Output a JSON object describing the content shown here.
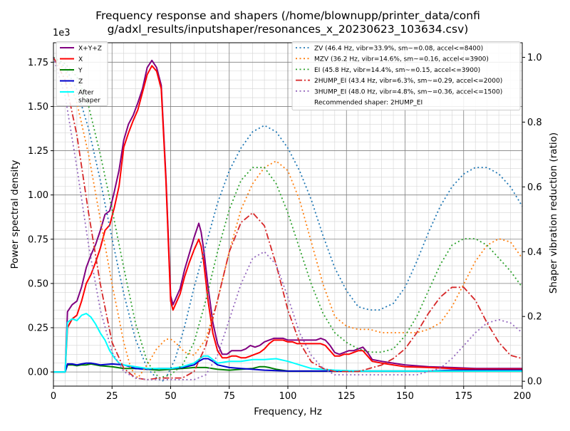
{
  "chart_data": {
    "type": "line",
    "title": [
      "Frequency response and shapers (/home/blownupp/printer_data/confi",
      "g/adxl_results/inputshaper/resonances_x_20230623_103634.csv)"
    ],
    "xlabel": "Frequency, Hz",
    "ylabel": "Power spectral density",
    "y2label": "Shaper vibration reduction (ratio)",
    "y_offset_text": "1e3",
    "xlim": [
      0,
      200
    ],
    "ylim": [
      -0.08,
      1.86
    ],
    "y2lim": [
      -0.015,
      1.045
    ],
    "x_ticks": [
      "0",
      "25",
      "50",
      "75",
      "100",
      "125",
      "150",
      "175",
      "200"
    ],
    "y_ticks": [
      "0.00",
      "0.25",
      "0.50",
      "0.75",
      "1.00",
      "1.25",
      "1.50",
      "1.75"
    ],
    "y2_ticks": [
      "0.0",
      "0.2",
      "0.4",
      "0.6",
      "0.8",
      "1.0"
    ],
    "grid": true,
    "legend_left_position": "top-left",
    "legend_right_position": "top-right",
    "psd_series": [
      {
        "name": "X+Y+Z",
        "color": "#800080",
        "x": [
          0,
          5,
          6,
          8,
          10,
          12,
          14,
          16,
          18,
          20,
          22,
          24,
          26,
          28,
          30,
          32,
          34,
          36,
          38,
          40,
          42,
          44,
          46,
          48,
          50,
          51,
          52,
          54,
          56,
          58,
          60,
          62,
          63,
          64,
          66,
          68,
          70,
          72,
          74,
          76,
          78,
          80,
          82,
          84,
          86,
          88,
          90,
          92,
          94,
          96,
          98,
          100,
          102,
          104,
          106,
          108,
          110,
          112,
          114,
          116,
          118,
          120,
          122,
          124,
          126,
          128,
          130,
          132,
          134,
          136,
          140,
          145,
          150,
          160,
          170,
          180,
          190,
          200
        ],
        "y": [
          0.0,
          0.0,
          0.34,
          0.38,
          0.4,
          0.48,
          0.59,
          0.66,
          0.72,
          0.8,
          0.89,
          0.91,
          1.02,
          1.14,
          1.31,
          1.4,
          1.45,
          1.52,
          1.6,
          1.72,
          1.76,
          1.72,
          1.62,
          1.1,
          0.43,
          0.38,
          0.41,
          0.47,
          0.58,
          0.67,
          0.76,
          0.84,
          0.79,
          0.7,
          0.48,
          0.28,
          0.16,
          0.1,
          0.1,
          0.12,
          0.12,
          0.12,
          0.13,
          0.15,
          0.14,
          0.15,
          0.17,
          0.18,
          0.19,
          0.19,
          0.19,
          0.18,
          0.18,
          0.18,
          0.18,
          0.18,
          0.18,
          0.18,
          0.19,
          0.18,
          0.15,
          0.11,
          0.1,
          0.11,
          0.12,
          0.12,
          0.13,
          0.14,
          0.11,
          0.07,
          0.06,
          0.05,
          0.04,
          0.03,
          0.025,
          0.02,
          0.02,
          0.02
        ]
      },
      {
        "name": "X",
        "color": "#ff0000",
        "x": [
          0,
          5,
          6,
          8,
          10,
          12,
          14,
          16,
          18,
          20,
          22,
          24,
          26,
          28,
          30,
          32,
          34,
          36,
          38,
          40,
          42,
          44,
          46,
          48,
          50,
          51,
          52,
          54,
          56,
          58,
          60,
          62,
          63,
          64,
          66,
          68,
          70,
          72,
          74,
          76,
          78,
          80,
          82,
          84,
          86,
          88,
          90,
          92,
          94,
          96,
          98,
          100,
          102,
          104,
          106,
          108,
          110,
          112,
          114,
          116,
          118,
          120,
          122,
          124,
          126,
          128,
          130,
          132,
          134,
          136,
          140,
          145,
          150,
          160,
          170,
          180,
          190,
          200
        ],
        "y": [
          0.0,
          0.0,
          0.25,
          0.3,
          0.32,
          0.4,
          0.5,
          0.55,
          0.62,
          0.7,
          0.8,
          0.83,
          0.93,
          1.05,
          1.27,
          1.35,
          1.42,
          1.48,
          1.58,
          1.68,
          1.73,
          1.7,
          1.6,
          1.08,
          0.4,
          0.35,
          0.38,
          0.44,
          0.54,
          0.62,
          0.69,
          0.75,
          0.71,
          0.63,
          0.4,
          0.22,
          0.12,
          0.08,
          0.08,
          0.09,
          0.09,
          0.08,
          0.08,
          0.09,
          0.1,
          0.11,
          0.13,
          0.16,
          0.18,
          0.18,
          0.18,
          0.17,
          0.17,
          0.16,
          0.16,
          0.16,
          0.16,
          0.16,
          0.16,
          0.15,
          0.12,
          0.09,
          0.09,
          0.1,
          0.1,
          0.11,
          0.12,
          0.12,
          0.09,
          0.06,
          0.05,
          0.04,
          0.03,
          0.025,
          0.02,
          0.015,
          0.015,
          0.015
        ]
      },
      {
        "name": "Y",
        "color": "#008000",
        "x": [
          0,
          5,
          6,
          8,
          10,
          12,
          14,
          16,
          18,
          20,
          25,
          30,
          35,
          40,
          45,
          50,
          55,
          60,
          65,
          70,
          75,
          80,
          85,
          88,
          90,
          92,
          95,
          100,
          110,
          120,
          130,
          140,
          150,
          160,
          170,
          180,
          190,
          200
        ],
        "y": [
          0.0,
          0.0,
          0.04,
          0.04,
          0.035,
          0.04,
          0.04,
          0.045,
          0.04,
          0.035,
          0.03,
          0.02,
          0.02,
          0.015,
          0.01,
          0.015,
          0.02,
          0.025,
          0.025,
          0.015,
          0.01,
          0.015,
          0.02,
          0.03,
          0.03,
          0.025,
          0.015,
          0.005,
          0.005,
          0.005,
          0.005,
          0.005,
          0.005,
          0.005,
          0.005,
          0.005,
          0.005,
          0.005
        ]
      },
      {
        "name": "Z",
        "color": "#0000cc",
        "x": [
          0,
          5,
          6,
          8,
          10,
          12,
          14,
          16,
          18,
          20,
          25,
          30,
          35,
          40,
          45,
          50,
          55,
          60,
          62,
          64,
          66,
          68,
          70,
          75,
          80,
          85,
          90,
          100,
          110,
          120,
          130,
          140,
          150,
          160,
          170,
          180,
          190,
          200
        ],
        "y": [
          0.0,
          0.0,
          0.045,
          0.045,
          0.04,
          0.045,
          0.05,
          0.05,
          0.045,
          0.04,
          0.045,
          0.04,
          0.02,
          0.015,
          0.02,
          0.02,
          0.025,
          0.04,
          0.06,
          0.075,
          0.075,
          0.06,
          0.04,
          0.025,
          0.02,
          0.015,
          0.01,
          0.005,
          0.005,
          0.005,
          0.005,
          0.005,
          0.005,
          0.005,
          0.01,
          0.01,
          0.01,
          0.01
        ]
      },
      {
        "name": "After\nshaper",
        "color": "#00ffff",
        "x": [
          0,
          5,
          6,
          8,
          10,
          12,
          14,
          16,
          18,
          20,
          22,
          24,
          26,
          28,
          30,
          35,
          40,
          45,
          50,
          55,
          60,
          62,
          64,
          66,
          68,
          70,
          75,
          80,
          85,
          90,
          95,
          100,
          105,
          110,
          120,
          130,
          140,
          150,
          160,
          170,
          180,
          190,
          200
        ],
        "y": [
          0.0,
          0.0,
          0.28,
          0.3,
          0.29,
          0.32,
          0.33,
          0.31,
          0.27,
          0.22,
          0.18,
          0.12,
          0.08,
          0.05,
          0.04,
          0.03,
          0.02,
          0.02,
          0.02,
          0.03,
          0.05,
          0.07,
          0.09,
          0.09,
          0.07,
          0.05,
          0.06,
          0.06,
          0.07,
          0.07,
          0.075,
          0.06,
          0.04,
          0.02,
          0.01,
          0.005,
          0.005,
          0.005,
          0.005,
          0.005,
          0.005,
          0.005,
          0.005
        ]
      }
    ],
    "shaper_series": [
      {
        "name": "ZV (46.4 Hz, vibr=33.9%, sm~=0.08, accel<=8400)",
        "color": "#1f77b4",
        "style": "dotted",
        "x": [
          0,
          5,
          10,
          15,
          20,
          25,
          30,
          35,
          40,
          44,
          46.4,
          48,
          52,
          56,
          60,
          65,
          70,
          75,
          80,
          85,
          90,
          95,
          100,
          105,
          110,
          115,
          120,
          125,
          130,
          135,
          139,
          145,
          150,
          155,
          160,
          165,
          170,
          175,
          180,
          185,
          190,
          195,
          200
        ],
        "y": [
          1.0,
          0.97,
          0.9,
          0.78,
          0.62,
          0.44,
          0.27,
          0.13,
          0.04,
          0.01,
          0.0,
          0.01,
          0.07,
          0.17,
          0.29,
          0.42,
          0.55,
          0.65,
          0.72,
          0.77,
          0.79,
          0.77,
          0.72,
          0.65,
          0.56,
          0.45,
          0.35,
          0.28,
          0.23,
          0.22,
          0.22,
          0.24,
          0.29,
          0.37,
          0.46,
          0.54,
          0.6,
          0.64,
          0.66,
          0.66,
          0.64,
          0.6,
          0.54
        ]
      },
      {
        "name": "MZV (36.2 Hz, vibr=14.6%, sm~=0.16, accel<=3900)",
        "color": "#ff7f0e",
        "style": "dotted",
        "x": [
          0,
          5,
          10,
          15,
          20,
          25,
          30,
          33,
          36,
          40,
          44,
          48,
          50,
          52,
          56,
          60,
          65,
          70,
          75,
          80,
          85,
          90,
          95,
          100,
          105,
          110,
          115,
          120,
          125,
          130,
          135,
          140,
          145,
          150,
          155,
          160,
          165,
          170,
          175,
          180,
          185,
          190,
          195,
          200
        ],
        "y": [
          1.0,
          0.96,
          0.86,
          0.7,
          0.5,
          0.3,
          0.12,
          0.04,
          0.01,
          0.05,
          0.1,
          0.13,
          0.13,
          0.12,
          0.09,
          0.08,
          0.13,
          0.25,
          0.4,
          0.53,
          0.61,
          0.66,
          0.68,
          0.65,
          0.56,
          0.43,
          0.3,
          0.2,
          0.17,
          0.16,
          0.16,
          0.15,
          0.15,
          0.15,
          0.15,
          0.16,
          0.18,
          0.23,
          0.3,
          0.37,
          0.42,
          0.44,
          0.43,
          0.38
        ]
      },
      {
        "name": "EI (45.8 Hz, vibr=14.4%, sm~=0.15, accel<=3900)",
        "color": "#2ca02c",
        "style": "dotted",
        "x": [
          0,
          5,
          10,
          15,
          20,
          25,
          30,
          35,
          40,
          45,
          50,
          55,
          60,
          65,
          70,
          75,
          80,
          85,
          90,
          95,
          100,
          105,
          110,
          115,
          120,
          125,
          130,
          135,
          140,
          145,
          150,
          155,
          160,
          165,
          170,
          175,
          180,
          185,
          190,
          195,
          200
        ],
        "y": [
          1.0,
          0.98,
          0.94,
          0.85,
          0.7,
          0.53,
          0.35,
          0.18,
          0.06,
          0.01,
          0.02,
          0.05,
          0.12,
          0.25,
          0.4,
          0.53,
          0.62,
          0.66,
          0.66,
          0.61,
          0.52,
          0.41,
          0.3,
          0.21,
          0.15,
          0.12,
          0.1,
          0.09,
          0.09,
          0.1,
          0.14,
          0.2,
          0.28,
          0.36,
          0.42,
          0.44,
          0.44,
          0.42,
          0.38,
          0.34,
          0.29
        ]
      },
      {
        "name": "2HUMP_EI (43.4 Hz, vibr=6.3%, sm~=0.29, accel<=2000)",
        "color": "#d62728",
        "style": "dashdot",
        "x": [
          0,
          5,
          10,
          15,
          20,
          25,
          30,
          35,
          40,
          45,
          50,
          55,
          60,
          65,
          70,
          75,
          80,
          85,
          90,
          95,
          100,
          105,
          110,
          115,
          120,
          125,
          130,
          135,
          140,
          145,
          150,
          155,
          160,
          165,
          170,
          175,
          180,
          185,
          190,
          195,
          200
        ],
        "y": [
          1.0,
          0.93,
          0.76,
          0.52,
          0.3,
          0.12,
          0.04,
          0.01,
          0.005,
          0.01,
          0.01,
          0.01,
          0.03,
          0.11,
          0.25,
          0.4,
          0.49,
          0.52,
          0.48,
          0.36,
          0.22,
          0.12,
          0.06,
          0.04,
          0.03,
          0.03,
          0.03,
          0.04,
          0.05,
          0.07,
          0.1,
          0.15,
          0.21,
          0.26,
          0.29,
          0.29,
          0.25,
          0.18,
          0.12,
          0.08,
          0.07
        ]
      },
      {
        "name": "3HUMP_EI (48.0 Hz, vibr=4.8%, sm~=0.36, accel<=1500)",
        "color": "#9467bd",
        "style": "dotted",
        "x": [
          0,
          5,
          10,
          15,
          20,
          25,
          30,
          35,
          40,
          45,
          50,
          55,
          60,
          65,
          70,
          75,
          80,
          85,
          90,
          95,
          100,
          105,
          110,
          115,
          120,
          125,
          130,
          135,
          140,
          145,
          150,
          155,
          160,
          165,
          170,
          175,
          180,
          185,
          190,
          195,
          200
        ],
        "y": [
          1.0,
          0.88,
          0.66,
          0.42,
          0.22,
          0.09,
          0.03,
          0.01,
          0.005,
          0.005,
          0.005,
          0.005,
          0.005,
          0.02,
          0.08,
          0.19,
          0.3,
          0.38,
          0.4,
          0.36,
          0.26,
          0.15,
          0.08,
          0.04,
          0.02,
          0.02,
          0.02,
          0.02,
          0.02,
          0.02,
          0.02,
          0.02,
          0.03,
          0.04,
          0.07,
          0.11,
          0.15,
          0.18,
          0.19,
          0.18,
          0.15
        ]
      }
    ],
    "recommended_text": "Recommended shaper: 2HUMP_EI"
  }
}
